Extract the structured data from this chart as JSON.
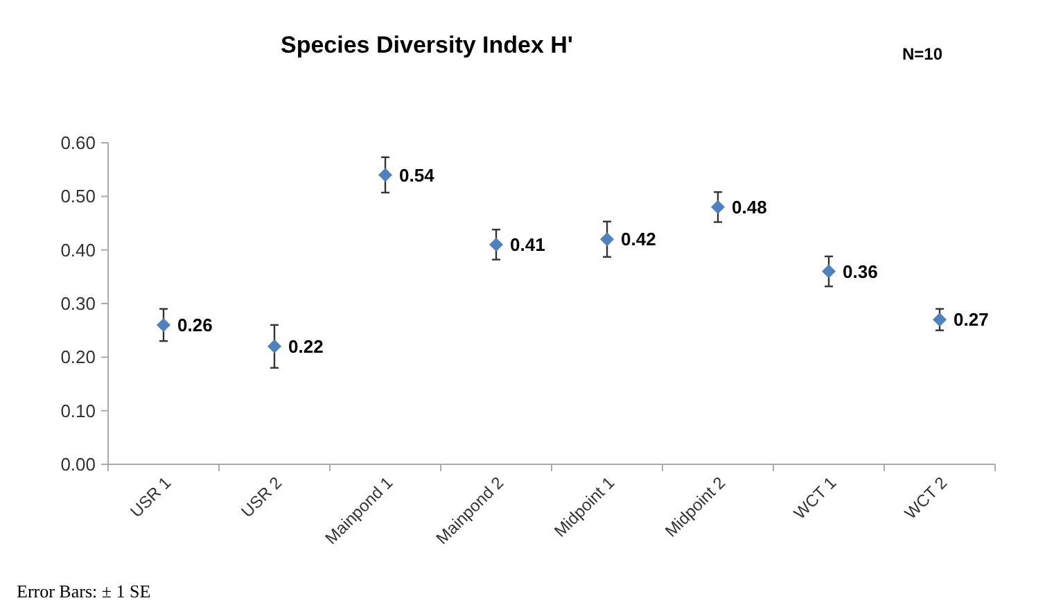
{
  "chart_data": {
    "type": "scatter",
    "title": "Species Diversity Index H'",
    "categories": [
      "USR 1",
      "USR 2",
      "Mainpond 1",
      "Mainpond 2",
      "Midpoint 1",
      "Midpoint 2",
      "WCT 1",
      "WCT 2"
    ],
    "values": [
      0.26,
      0.22,
      0.54,
      0.41,
      0.42,
      0.48,
      0.36,
      0.27
    ],
    "errors": [
      0.03,
      0.04,
      0.033,
      0.028,
      0.033,
      0.028,
      0.028,
      0.02
    ],
    "color": "#4f81bd",
    "marker": "diamond",
    "data_labels": true,
    "grid": false,
    "ylim": [
      0,
      0.6
    ],
    "yticks": [
      {
        "value": 0,
        "label": "0.00"
      },
      {
        "value": 0.1,
        "label": "0.10"
      },
      {
        "value": 0.2,
        "label": "0.20"
      },
      {
        "value": 0.3,
        "label": "0.30"
      },
      {
        "value": 0.4,
        "label": "0.40"
      },
      {
        "value": 0.5,
        "label": "0.50"
      },
      {
        "value": 0.6,
        "label": "0.60"
      }
    ],
    "annotations": [
      "N=10",
      "Error Bars: ± 1 SE"
    ]
  }
}
